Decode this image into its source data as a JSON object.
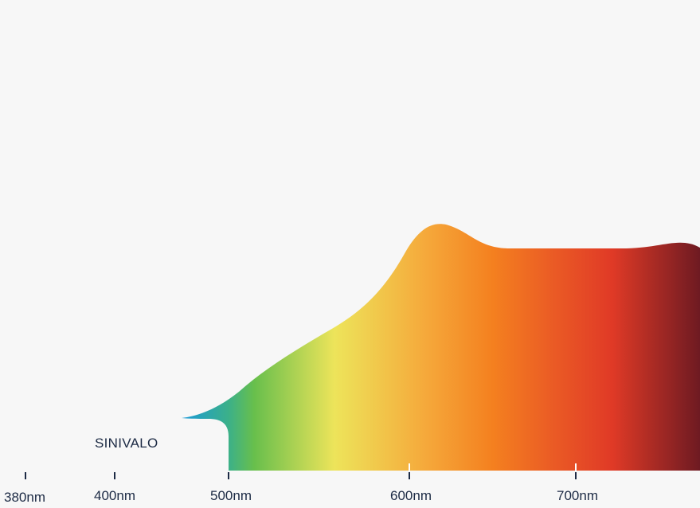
{
  "chart_data": {
    "type": "area",
    "x_unit": "nm",
    "xticks": [
      "380nm",
      "400nm",
      "500nm",
      "600nm",
      "700nm"
    ],
    "annotations": [
      "SINIVALO"
    ],
    "fill": "spectral gradient",
    "gradient_colors": [
      "#1a9ad8",
      "#3bb08a",
      "#68bf4c",
      "#ede45a",
      "#f5a93b",
      "#f4801f",
      "#e03a26",
      "#6e1a22"
    ],
    "grid": false,
    "legend": "none"
  }
}
